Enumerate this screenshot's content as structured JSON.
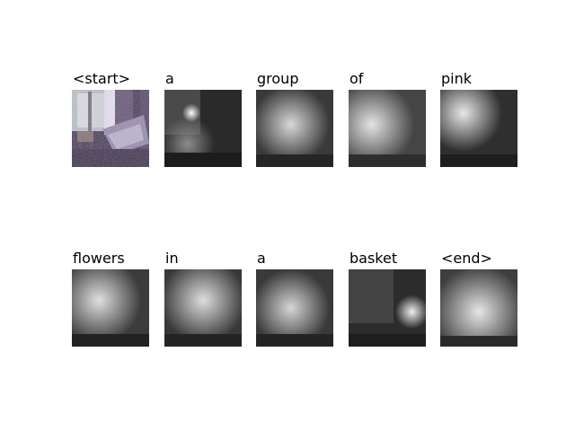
{
  "caption_tokens": [
    "<start>",
    "a",
    "group",
    "of",
    "pink",
    "flowers",
    "in",
    "a",
    "basket",
    "<end>"
  ],
  "colors": {
    "background": "#ffffff",
    "text": "#000000"
  },
  "tiles": [
    {
      "kind": "source-photo"
    },
    {
      "kind": "attention-map",
      "focus": "upper-left spot"
    },
    {
      "kind": "attention-map",
      "focus": "center"
    },
    {
      "kind": "attention-map",
      "focus": "left"
    },
    {
      "kind": "attention-map",
      "focus": "upper-left"
    },
    {
      "kind": "attention-map",
      "focus": "left"
    },
    {
      "kind": "attention-map",
      "focus": "center"
    },
    {
      "kind": "attention-map",
      "focus": "center"
    },
    {
      "kind": "attention-map",
      "focus": "right"
    },
    {
      "kind": "attention-map",
      "focus": "center"
    }
  ]
}
